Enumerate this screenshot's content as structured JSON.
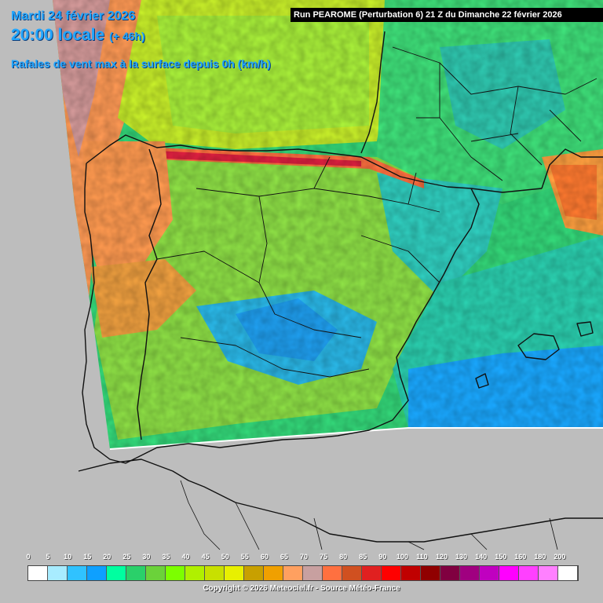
{
  "header": {
    "date_line": "Mardi 24 février 2026",
    "time_line": "20:00 locale",
    "lead_time": "(+ 46h)",
    "parameter": "Rafales de vent max à la surface depuis 0h (km/h)"
  },
  "run_info": "Run PEAROME (Perturbation 6) 21 Z du Dimanche 22 février 2026",
  "legend": {
    "ticks": [
      "0",
      "5",
      "10",
      "15",
      "20",
      "25",
      "30",
      "35",
      "40",
      "45",
      "50",
      "55",
      "60",
      "65",
      "70",
      "75",
      "80",
      "85",
      "90",
      "100",
      "110",
      "120",
      "130",
      "140",
      "150",
      "160",
      "180",
      "200"
    ],
    "colors": [
      "#ffffff",
      "#a8ecff",
      "#30c2ff",
      "#0ea0ff",
      "#00ffa0",
      "#2ad06a",
      "#6bd23a",
      "#7cff00",
      "#b0f000",
      "#c8e000",
      "#e8f000",
      "#c8a000",
      "#f0a000",
      "#ffa060",
      "#c8a0a0",
      "#ff7040",
      "#d05020",
      "#e02020",
      "#ff0000",
      "#c00000",
      "#900000",
      "#800040",
      "#a00080",
      "#c000c0",
      "#ff00ff",
      "#ff40ff",
      "#ff80ff",
      "#ffffff"
    ]
  },
  "copyright": "Copyright © 2026 Meteociel.fr - Source Météo-France"
}
